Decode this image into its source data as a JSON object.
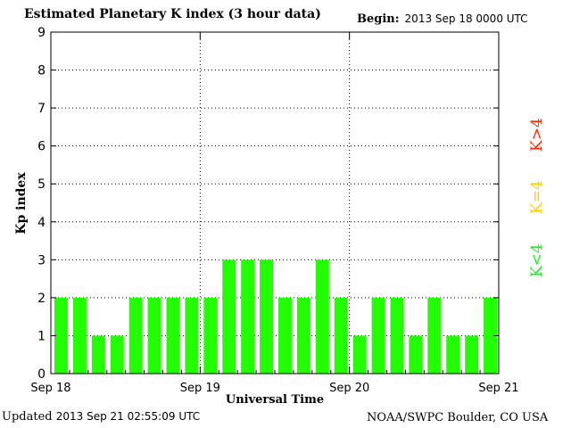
{
  "header": {
    "title": "Estimated Planetary K index (3 hour data)",
    "begin_label": "Begin:",
    "begin_value": "2013 Sep 18 0000 UTC"
  },
  "footer": {
    "updated_label": "Updated",
    "updated_value": "2013 Sep 21 02:55:09 UTC",
    "source": "NOAA/SWPC Boulder, CO USA"
  },
  "legend": [
    {
      "label": "K>4",
      "color": "#ff2a00"
    },
    {
      "label": "K=4",
      "color": "#ffcc00"
    },
    {
      "label": "K<4",
      "color": "#22ee22"
    }
  ],
  "chart_data": {
    "type": "bar",
    "xlabel": "Universal Time",
    "ylabel": "Kp index",
    "ylim": [
      0,
      9
    ],
    "yticks": [
      0,
      1,
      2,
      3,
      4,
      5,
      6,
      7,
      8,
      9
    ],
    "xtick_labels": [
      "Sep 18",
      "Sep 19",
      "Sep 20",
      "Sep 21"
    ],
    "values": [
      2,
      2,
      1,
      1,
      2,
      2,
      2,
      2,
      2,
      3,
      3,
      3,
      2,
      2,
      3,
      2,
      1,
      2,
      2,
      1,
      2,
      1,
      1,
      2
    ],
    "bar_color": "#22ff00",
    "grid": "dotted at day boundaries and integer Kp"
  }
}
